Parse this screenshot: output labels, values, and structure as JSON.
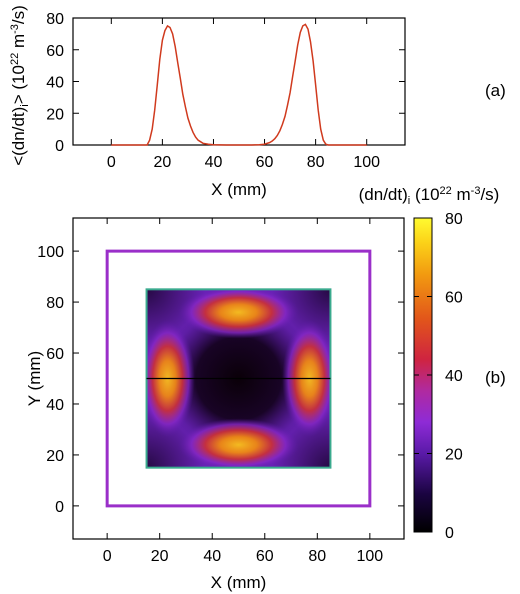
{
  "chart_data": [
    {
      "panel_label": "(a)",
      "type": "line",
      "xlabel": "X (mm)",
      "ylabel_main": "<(dn/dt)",
      "ylabel_sub": "i",
      "ylabel_rest": "> (10",
      "ylabel_exp1": "22",
      "ylabel_unit": " m",
      "ylabel_exp2": "-3",
      "ylabel_tail": "/s)",
      "xlim": [
        -15,
        115
      ],
      "ylim": [
        0,
        80
      ],
      "xticks": [
        "0",
        "20",
        "40",
        "60",
        "80",
        "100"
      ],
      "yticks": [
        "0",
        "20",
        "40",
        "60",
        "80"
      ],
      "series": [
        {
          "color": "#d03a1e",
          "x": [
            0,
            14,
            15,
            16,
            17,
            18,
            19,
            20,
            21,
            22,
            23,
            24,
            25,
            26,
            27,
            28,
            29,
            30,
            31,
            32,
            33,
            34,
            35,
            36,
            38,
            40,
            45,
            50,
            55,
            58,
            60,
            61,
            62,
            63,
            64,
            65,
            66,
            67,
            68,
            69,
            70,
            71,
            72,
            73,
            74,
            75,
            76,
            77,
            78,
            79,
            80,
            81,
            82,
            83,
            84,
            85,
            100
          ],
          "y": [
            0,
            0,
            3,
            10,
            22,
            38,
            54,
            66,
            72,
            75,
            74,
            70,
            62,
            52,
            42,
            32,
            24,
            17,
            12,
            8,
            5,
            3,
            2,
            1,
            0.5,
            0.2,
            0,
            0,
            0,
            0.2,
            0.5,
            1,
            1.5,
            2.5,
            4,
            6,
            9,
            13,
            18,
            25,
            33,
            43,
            53,
            63,
            71,
            75,
            76,
            73,
            65,
            53,
            38,
            22,
            10,
            3,
            0.5,
            0,
            0
          ]
        }
      ]
    },
    {
      "panel_label": "(b)",
      "type": "heatmap",
      "xlabel": "X (mm)",
      "ylabel": "Y (mm)",
      "xlim": [
        -13,
        113
      ],
      "ylim": [
        -13,
        113
      ],
      "xticks": [
        "0",
        "20",
        "40",
        "60",
        "80",
        "100"
      ],
      "yticks": [
        "0",
        "20",
        "40",
        "60",
        "80",
        "100"
      ],
      "colorbar": {
        "title_main": "(dn/dt)",
        "title_sub": "i",
        "title_rest": " (10",
        "title_exp1": "22",
        "title_unit": " m",
        "title_exp2": "-3",
        "title_tail": "/s)",
        "range": [
          0,
          80
        ],
        "ticks": [
          "0",
          "20",
          "40",
          "60",
          "80"
        ]
      },
      "outer_square": {
        "x": [
          0,
          100
        ],
        "y": [
          0,
          100
        ],
        "color": "#9a2fc9"
      },
      "inner_square": {
        "x": [
          15,
          85
        ],
        "y": [
          15,
          85
        ],
        "color": "#3aaa8e"
      },
      "line_cut": {
        "y": 50,
        "x": [
          15,
          85
        ],
        "color": "#000000"
      },
      "hotspots": [
        {
          "x": 50,
          "y": 76,
          "peak": 76
        },
        {
          "x": 50,
          "y": 24,
          "peak": 76
        },
        {
          "x": 23,
          "y": 50,
          "peak": 75
        },
        {
          "x": 77,
          "y": 50,
          "peak": 75
        }
      ]
    }
  ]
}
